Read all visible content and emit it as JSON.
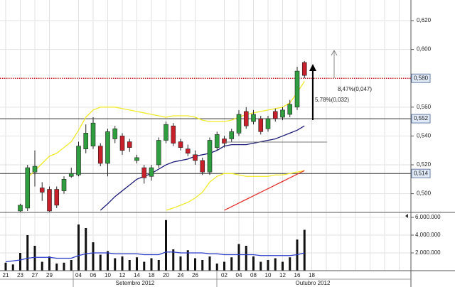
{
  "chart_data": [
    {
      "type": "candlestick",
      "open": [
        null,
        null,
        0.488,
        0.49,
        0.515,
        0.504,
        0.503,
        0.503,
        0.502,
        0.512,
        0.513,
        0.531,
        0.533,
        0.533,
        0.521,
        0.538,
        0.54,
        0.536,
        0.523,
        0.518,
        0.512,
        0.52,
        0.537,
        0.547,
        0.536,
        0.531,
        0.527,
        0.523,
        0.515,
        0.532,
        0.538,
        0.538,
        0.542,
        0.557,
        0.55,
        0.552,
        0.545,
        0.557,
        0.553,
        0.555,
        0.56,
        0.591,
        null
      ],
      "high": [
        null,
        null,
        0.493,
        0.52,
        0.53,
        0.508,
        0.505,
        0.505,
        0.512,
        0.518,
        0.536,
        0.548,
        0.553,
        0.535,
        0.545,
        0.547,
        0.542,
        0.538,
        0.527,
        0.52,
        0.52,
        0.539,
        0.55,
        0.549,
        0.538,
        0.534,
        0.53,
        0.525,
        0.539,
        0.543,
        0.54,
        0.545,
        0.558,
        0.56,
        0.558,
        0.554,
        0.554,
        0.559,
        0.56,
        0.565,
        0.588,
        0.592,
        null
      ],
      "low": [
        null,
        null,
        0.487,
        0.488,
        0.505,
        0.495,
        0.487,
        0.49,
        0.5,
        0.511,
        0.512,
        0.528,
        0.531,
        0.519,
        0.512,
        0.535,
        0.527,
        0.529,
        0.521,
        0.507,
        0.509,
        0.518,
        0.535,
        0.533,
        0.53,
        0.526,
        0.52,
        0.513,
        0.513,
        0.53,
        0.532,
        0.536,
        0.54,
        0.545,
        0.548,
        0.541,
        0.543,
        0.55,
        0.551,
        0.553,
        0.558,
        0.58,
        null
      ],
      "close": [
        null,
        null,
        0.492,
        0.518,
        0.519,
        0.501,
        0.488,
        0.492,
        0.51,
        0.514,
        0.533,
        0.542,
        0.549,
        0.521,
        0.543,
        0.545,
        0.53,
        0.532,
        0.525,
        0.511,
        0.518,
        0.537,
        0.548,
        0.535,
        0.532,
        0.528,
        0.523,
        0.515,
        0.537,
        0.541,
        0.535,
        0.543,
        0.555,
        0.547,
        0.555,
        0.543,
        0.552,
        0.552,
        0.558,
        0.562,
        0.585,
        0.582,
        null
      ],
      "up_color": "#2f9e3f",
      "down_color": "#c8202a",
      "series": [
        {
          "color": "#f2ea2a",
          "values": [
            null,
            null,
            null,
            0.511,
            0.516,
            0.521,
            0.526,
            0.528,
            0.532,
            0.536,
            0.544,
            0.553,
            0.558,
            0.56,
            0.56,
            0.56,
            0.559,
            0.558,
            0.557,
            0.556,
            0.555,
            0.554,
            0.553,
            0.554,
            0.554,
            0.554,
            0.553,
            0.551,
            0.55,
            0.55,
            0.55,
            0.551,
            0.553,
            0.555,
            0.556,
            0.557,
            0.558,
            0.559,
            0.56,
            0.563,
            0.57,
            0.578,
            null
          ]
        },
        {
          "color": "#f2ea2a",
          "values": [
            null,
            null,
            null,
            null,
            null,
            null,
            null,
            null,
            null,
            null,
            null,
            null,
            null,
            null,
            null,
            null,
            null,
            null,
            null,
            null,
            null,
            null,
            0.4885,
            0.49,
            0.492,
            0.494,
            0.497,
            0.501,
            0.508,
            0.512,
            0.514,
            0.514,
            0.513,
            0.512,
            0.512,
            0.512,
            0.512,
            0.513,
            0.513,
            0.514,
            0.515,
            0.516,
            null
          ]
        },
        {
          "color": "#1c1c78",
          "values": [
            null,
            null,
            null,
            null,
            null,
            null,
            null,
            null,
            null,
            null,
            null,
            null,
            null,
            0.4885,
            0.493,
            0.498,
            0.502,
            0.506,
            0.51,
            0.512,
            0.514,
            0.517,
            0.52,
            0.522,
            0.523,
            0.524,
            0.526,
            0.527,
            0.528,
            0.53,
            0.533,
            0.534,
            0.534,
            0.534,
            0.535,
            0.536,
            0.537,
            0.538,
            0.54,
            0.542,
            0.544,
            0.547,
            null
          ]
        },
        {
          "color": "#e0302a",
          "values": [
            null,
            null,
            null,
            null,
            null,
            null,
            null,
            null,
            null,
            null,
            null,
            null,
            null,
            null,
            null,
            null,
            null,
            null,
            null,
            null,
            null,
            null,
            null,
            null,
            null,
            null,
            null,
            null,
            null,
            null,
            0.4885,
            0.491,
            0.4935,
            0.496,
            0.4985,
            0.501,
            0.5035,
            0.506,
            0.5085,
            0.511,
            0.5135,
            0.516,
            null
          ]
        }
      ],
      "ylim": [
        0.4875,
        0.6343
      ],
      "yticks": [
        {
          "value": 0.5,
          "label": "0,500"
        },
        {
          "value": 0.52,
          "label": "0,520"
        },
        {
          "value": 0.54,
          "label": "0,540"
        },
        {
          "value": 0.56,
          "label": "0,560"
        },
        {
          "value": 0.6,
          "label": "0,600"
        },
        {
          "value": 0.62,
          "label": "0,620"
        }
      ],
      "hlines": [
        {
          "value": 0.58,
          "label": "0,580",
          "color": "#c0282a",
          "style": "dotted"
        },
        {
          "value": 0.552,
          "label": "0,552",
          "color": "#333333",
          "style": "solid"
        },
        {
          "value": 0.514,
          "label": "0,514",
          "color": "#333333",
          "style": "solid"
        }
      ],
      "annotations": [
        "8,47%(0,047)",
        "5,78%(0,032)"
      ],
      "grid": true
    },
    {
      "type": "bar",
      "categories": [
        "21",
        null,
        "23",
        null,
        "27",
        null,
        "29",
        null,
        null,
        null,
        "04",
        null,
        "06",
        null,
        "10",
        null,
        "12",
        null,
        "14",
        null,
        "18",
        null,
        "20",
        null,
        "24",
        null,
        "26",
        null,
        null,
        null,
        "02",
        null,
        "04",
        null,
        "08",
        null,
        "10",
        null,
        "12",
        null,
        "16",
        null,
        "18"
      ],
      "months": [
        "Setembro 2012",
        "Outubro 2012"
      ],
      "values": [
        900000,
        700000,
        2000000,
        4000000,
        2800000,
        1000000,
        1600000,
        800000,
        900000,
        1200000,
        5200000,
        4800000,
        3200000,
        1800000,
        2200000,
        1400000,
        1600000,
        1200000,
        1500000,
        1000000,
        1400000,
        1200000,
        5700000,
        2400000,
        1600000,
        2300000,
        1400000,
        1200000,
        1600000,
        800000,
        1000000,
        1500000,
        3000000,
        2800000,
        1600000,
        1000000,
        1200000,
        1400000,
        1000000,
        1500000,
        3500000,
        4600000,
        null
      ],
      "color": "#111111",
      "series": [
        {
          "color": "#2a3cc8",
          "values": [
            1000000,
            1100000,
            1200000,
            1400000,
            1500000,
            1500000,
            1500000,
            1400000,
            1400000,
            1400000,
            1700000,
            1900000,
            2000000,
            2000000,
            2000000,
            1900000,
            1900000,
            1900000,
            1900000,
            1800000,
            1800000,
            1800000,
            2100000,
            2100000,
            2000000,
            2000000,
            2000000,
            2000000,
            1900000,
            1900000,
            1800000,
            1800000,
            1800000,
            1800000,
            1800000,
            1700000,
            1700000,
            1700000,
            1700000,
            1700000,
            1800000,
            2000000,
            null
          ]
        }
      ],
      "ylim": [
        0,
        6480000
      ],
      "yticks": [
        {
          "value": 2000000,
          "label": "2.000.000"
        },
        {
          "value": 4000000,
          "label": "4.000.000"
        },
        {
          "value": 6000000,
          "label": "6.000.000"
        }
      ],
      "grid": true
    }
  ]
}
